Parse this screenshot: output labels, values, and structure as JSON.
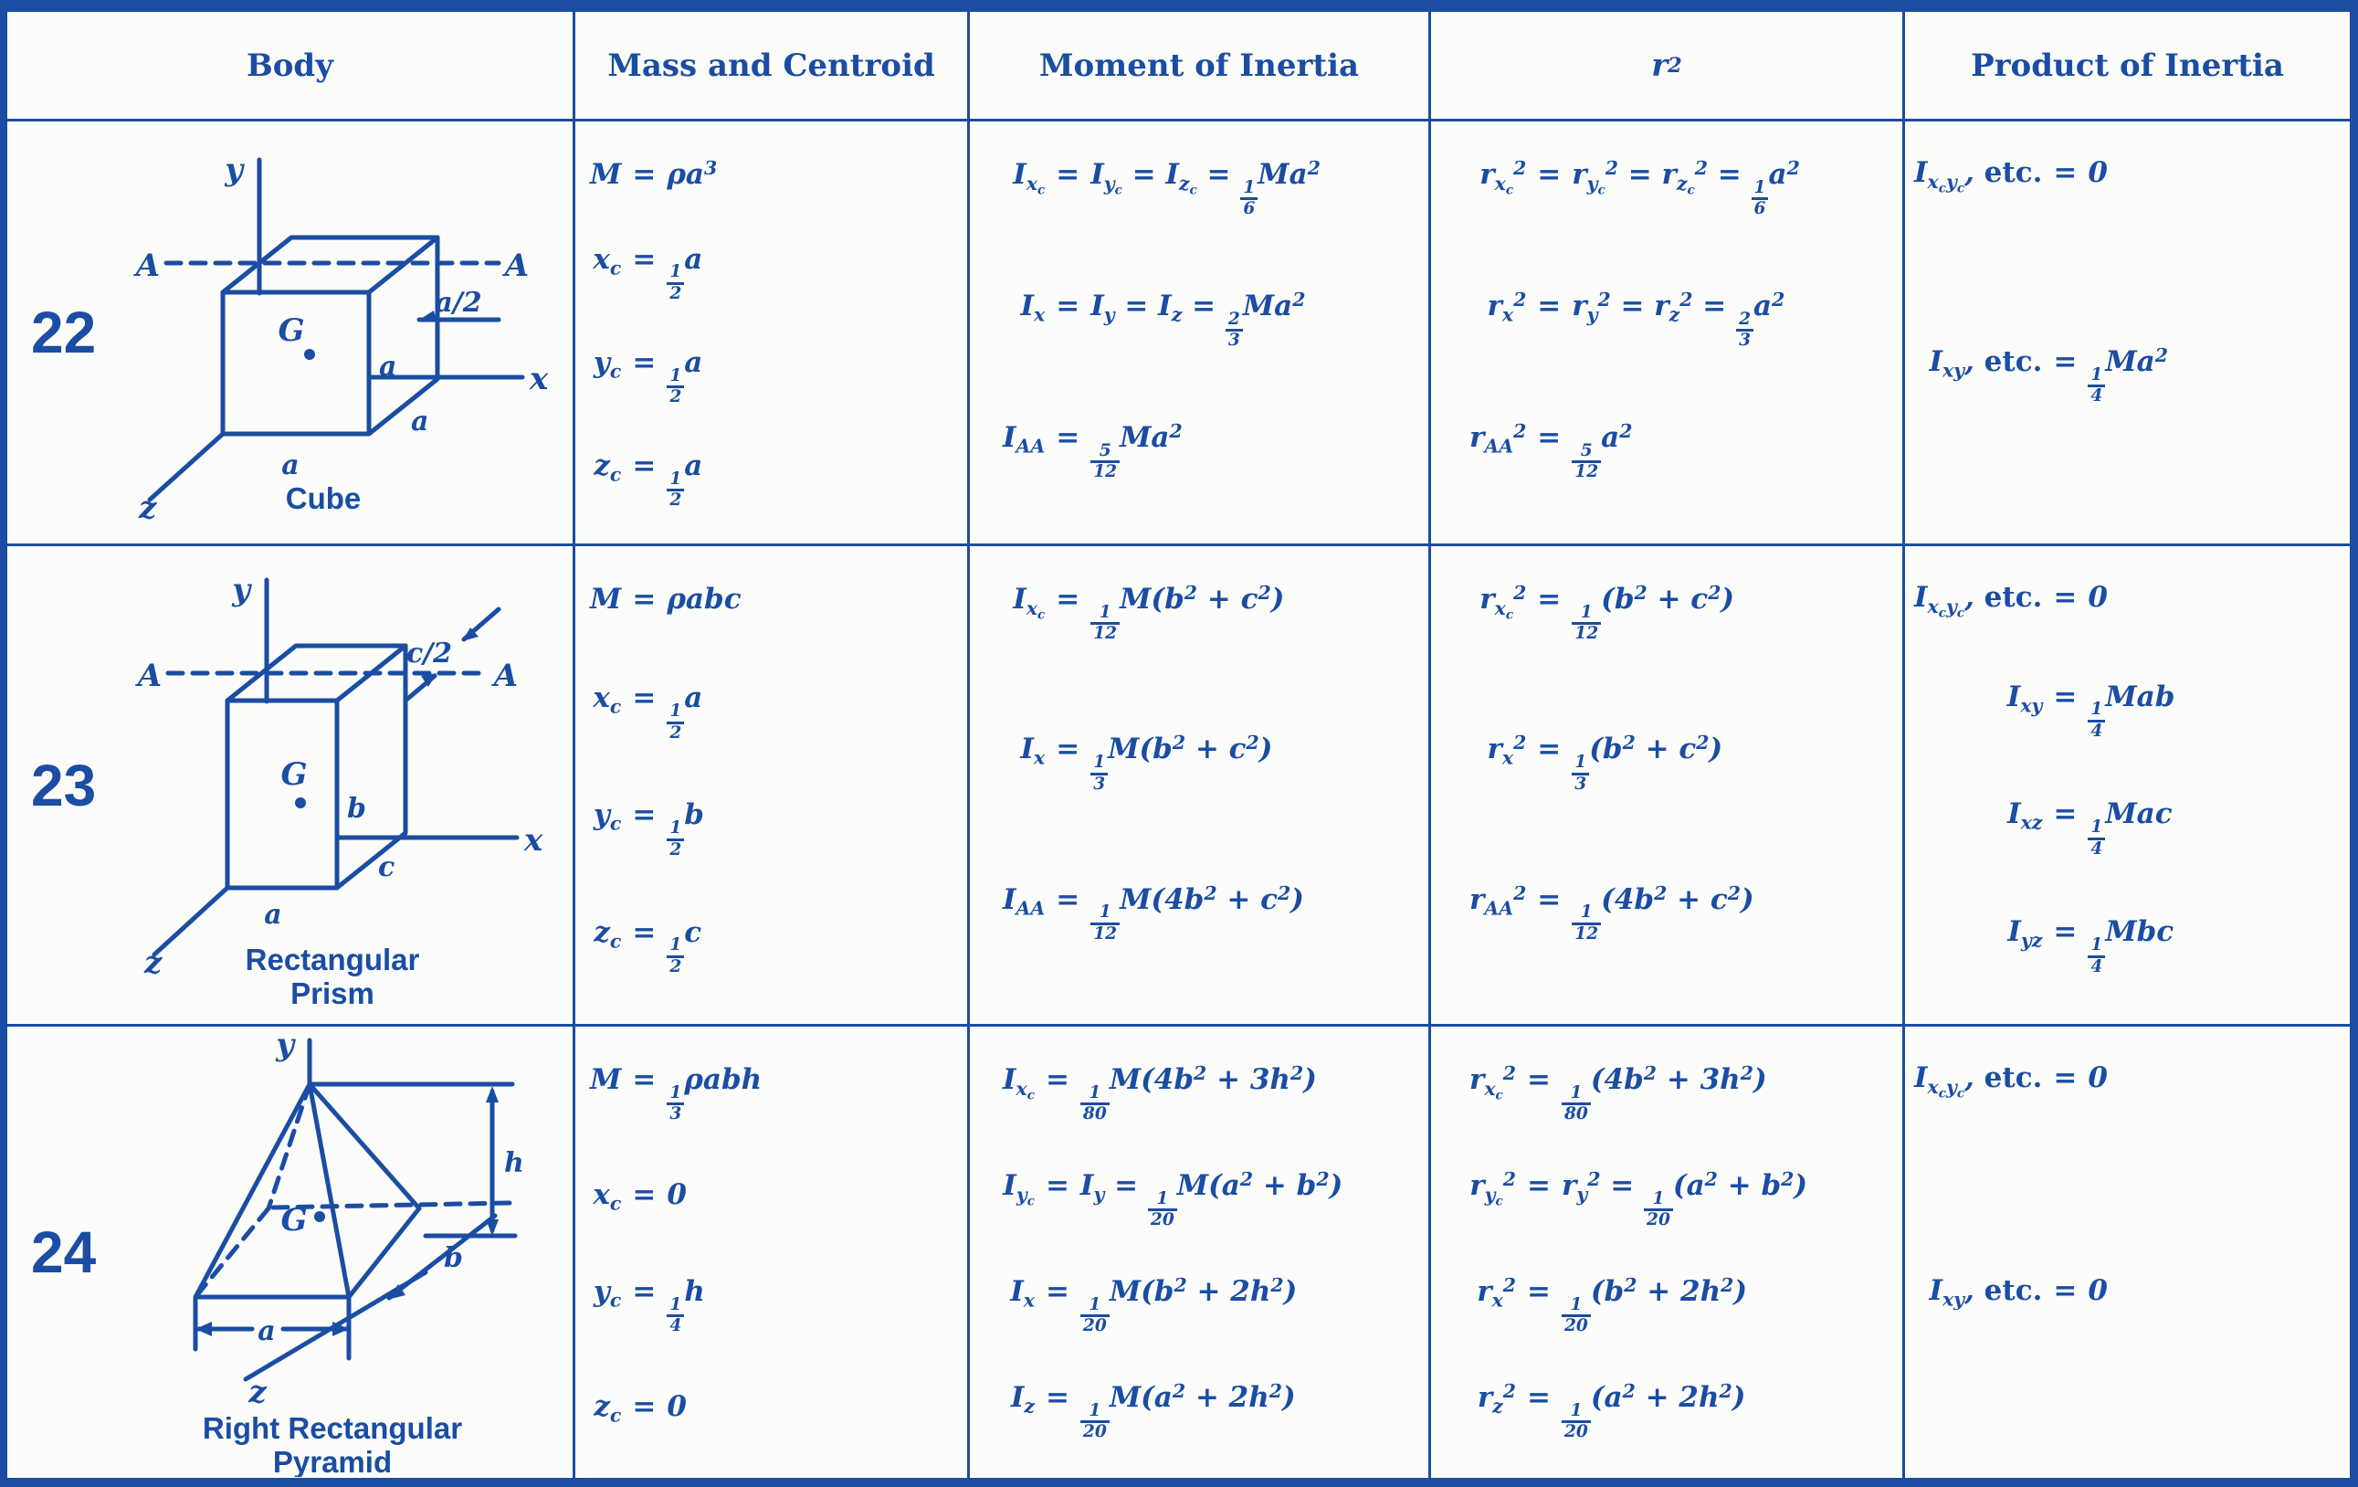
{
  "page": {
    "ink_color": "#1a4da3",
    "paper_color": "#fcfcfa"
  },
  "table": {
    "headers": [
      "Body",
      "Mass and Centroid",
      "Moment of Inertia",
      "r^2",
      "Product of Inertia"
    ],
    "rows": [
      {
        "number": "22",
        "diagram": {
          "axis_y": "y",
          "axis_x": "x",
          "axis_z": "z",
          "section_left": "A",
          "section_right": "A",
          "offset": "a/2",
          "centroid": "G",
          "edge_right": "a",
          "edge_depth": "a",
          "edge_front": "a",
          "caption": "Cube"
        },
        "mass_centroid": [
          "M = ρa^3",
          "x_c = {1/2}a",
          "y_c = {1/2}a",
          "z_c = {1/2}a"
        ],
        "moment_of_inertia": [
          "I_{x_c} = I_{y_c} = I_{z_c} = {1/6}Ma^2",
          "I_x = I_y = I_z = {2/3}Ma^2",
          "I_{AA} = {5/12}Ma^2"
        ],
        "r_squared": [
          "r_{x_c}^2 = r_{y_c}^2 = r_{z_c}^2 = {1/6}a^2",
          "r_x^2 = r_y^2 = r_z^2 = {2/3}a^2",
          "r_{AA}^2 = {5/12}a^2"
        ],
        "product_of_inertia": [
          "I_{x_cy_c}, !{etc.} = 0",
          "I_{xy}, !{etc.} = {1/4}Ma^2"
        ]
      },
      {
        "number": "23",
        "diagram": {
          "axis_y": "y",
          "axis_x": "x",
          "axis_z": "z",
          "section_left": "A",
          "section_right": "A",
          "offset": "c/2",
          "centroid": "G",
          "edge_b": "b",
          "edge_c": "c",
          "edge_a": "a",
          "caption_line1": "Rectangular",
          "caption_line2": "Prism"
        },
        "mass_centroid": [
          "M = ρabc",
          "x_c = {1/2}a",
          "y_c = {1/2}b",
          "z_c = {1/2}c"
        ],
        "moment_of_inertia": [
          "I_{x_c} = {1/12}M(b^2 + c^2)",
          "I_x = {1/3}M(b^2 + c^2)",
          "I_{AA} = {1/12}M(4b^2 + c^2)"
        ],
        "r_squared": [
          "r_{x_c}^2 = {1/12}(b^2 + c^2)",
          "r_x^2 = {1/3}(b^2 + c^2)",
          "r_{AA}^2 = {1/12}(4b^2 + c^2)"
        ],
        "product_of_inertia": [
          "I_{x_cy_c}, !{etc.} = 0",
          "I_{xy} = {1/4}Mab",
          "I_{xz} = {1/4}Mac",
          "I_{yz} = {1/4}Mbc"
        ]
      },
      {
        "number": "24",
        "diagram": {
          "axis_y": "y",
          "axis_z": "z",
          "centroid": "G",
          "dim_h": "h",
          "dim_b": "b",
          "dim_a": "a",
          "caption_line1": "Right Rectangular",
          "caption_line2": "Pyramid"
        },
        "mass_centroid": [
          "M = {1/3}ρabh",
          "x_c = 0",
          "y_c = {1/4}h",
          "z_c = 0"
        ],
        "moment_of_inertia": [
          "I_{x_c} = {1/80}M(4b^2 + 3h^2)",
          "I_{y_c} = I_y = {1/20}M(a^2 + b^2)",
          "I_x = {1/20}M(b^2 + 2h^2)",
          "I_z = {1/20}M(a^2 + 2h^2)"
        ],
        "r_squared": [
          "r_{x_c}^2 = {1/80}(4b^2 + 3h^2)",
          "r_{y_c}^2 = r_y^2 = {1/20}(a^2 + b^2)",
          "r_x^2 = {1/20}(b^2 + 2h^2)",
          "r_z^2 = {1/20}(a^2 + 2h^2)"
        ],
        "product_of_inertia": [
          "I_{x_cy_c}, !{etc.} = 0",
          "I_{xy}, !{etc.} = 0"
        ]
      }
    ]
  }
}
